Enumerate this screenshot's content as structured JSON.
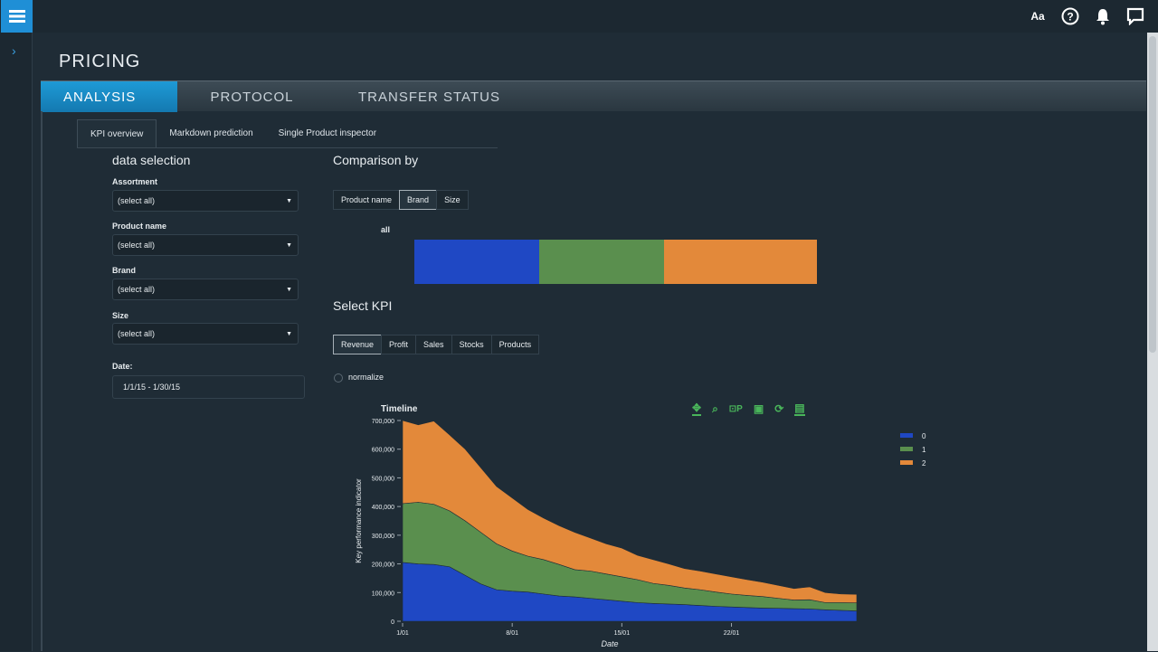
{
  "app": {
    "page_title": "PRICING",
    "main_tabs": [
      "ANALYSIS",
      "PROTOCOL",
      "TRANSFER STATUS"
    ],
    "sub_tabs": [
      "KPI overview",
      "Markdown prediction",
      "Single Product inspector"
    ],
    "top_icons": [
      "Aa",
      "?"
    ]
  },
  "data_selection": {
    "title": "data selection",
    "assortment_label": "Assortment",
    "assortment_value": "(select all)",
    "product_label": "Product name",
    "product_value": "(select all)",
    "brand_label": "Brand",
    "brand_value": "(select all)",
    "size_label": "Size",
    "size_value": "(select all)",
    "date_label": "Date:",
    "date_value": "1/1/15 - 1/30/15"
  },
  "comparison": {
    "title": "Comparison by",
    "options": [
      "Product name",
      "Brand",
      "Size"
    ],
    "active": "Brand",
    "bar_label": "all",
    "bar_shares": [
      0.31,
      0.31,
      0.38
    ],
    "colors": [
      "#1f48c4",
      "#5a8f4e",
      "#e3893a"
    ]
  },
  "kpi": {
    "title": "Select KPI",
    "options": [
      "Revenue",
      "Profit",
      "Sales",
      "Stocks",
      "Products"
    ],
    "active": "Revenue",
    "normalize_label": "normalize"
  },
  "chart_data": {
    "type": "area",
    "title": "Timeline",
    "xlabel": "Date",
    "ylabel": "Key performance indicator",
    "x_ticks": [
      "1/01",
      "8/01",
      "15/01",
      "22/01"
    ],
    "y_ticks": [
      "0",
      "100,000",
      "200,000",
      "300,000",
      "400,000",
      "500,000",
      "600,000",
      "700,000"
    ],
    "ylim": [
      0,
      700000
    ],
    "stacked": true,
    "x": [
      1,
      2,
      3,
      4,
      5,
      6,
      7,
      8,
      9,
      10,
      11,
      12,
      13,
      14,
      15,
      16,
      17,
      18,
      19,
      20,
      21,
      22,
      23,
      24,
      25,
      26,
      27,
      28,
      29,
      30
    ],
    "series": [
      {
        "name": "0",
        "color": "#1f48c4",
        "values": [
          205000,
          200000,
          198000,
          190000,
          160000,
          130000,
          110000,
          105000,
          102000,
          95000,
          88000,
          85000,
          80000,
          75000,
          70000,
          65000,
          62000,
          60000,
          58000,
          55000,
          52000,
          50000,
          48000,
          46000,
          45000,
          44000,
          43000,
          40000,
          38000,
          36000
        ]
      },
      {
        "name": "1",
        "color": "#5a8f4e",
        "values": [
          205000,
          215000,
          210000,
          195000,
          190000,
          180000,
          160000,
          140000,
          125000,
          120000,
          110000,
          95000,
          95000,
          90000,
          85000,
          80000,
          70000,
          65000,
          58000,
          55000,
          50000,
          45000,
          42000,
          40000,
          35000,
          30000,
          32000,
          25000,
          27000,
          28000
        ]
      },
      {
        "name": "2",
        "color": "#e3893a",
        "values": [
          290000,
          270000,
          290000,
          265000,
          250000,
          225000,
          200000,
          185000,
          163000,
          145000,
          135000,
          130000,
          115000,
          105000,
          100000,
          85000,
          83000,
          75000,
          68000,
          65000,
          63000,
          60000,
          55000,
          50000,
          45000,
          40000,
          45000,
          35000,
          30000,
          30000
        ]
      }
    ],
    "legend": [
      "0",
      "1",
      "2"
    ],
    "legend_position": "right"
  }
}
